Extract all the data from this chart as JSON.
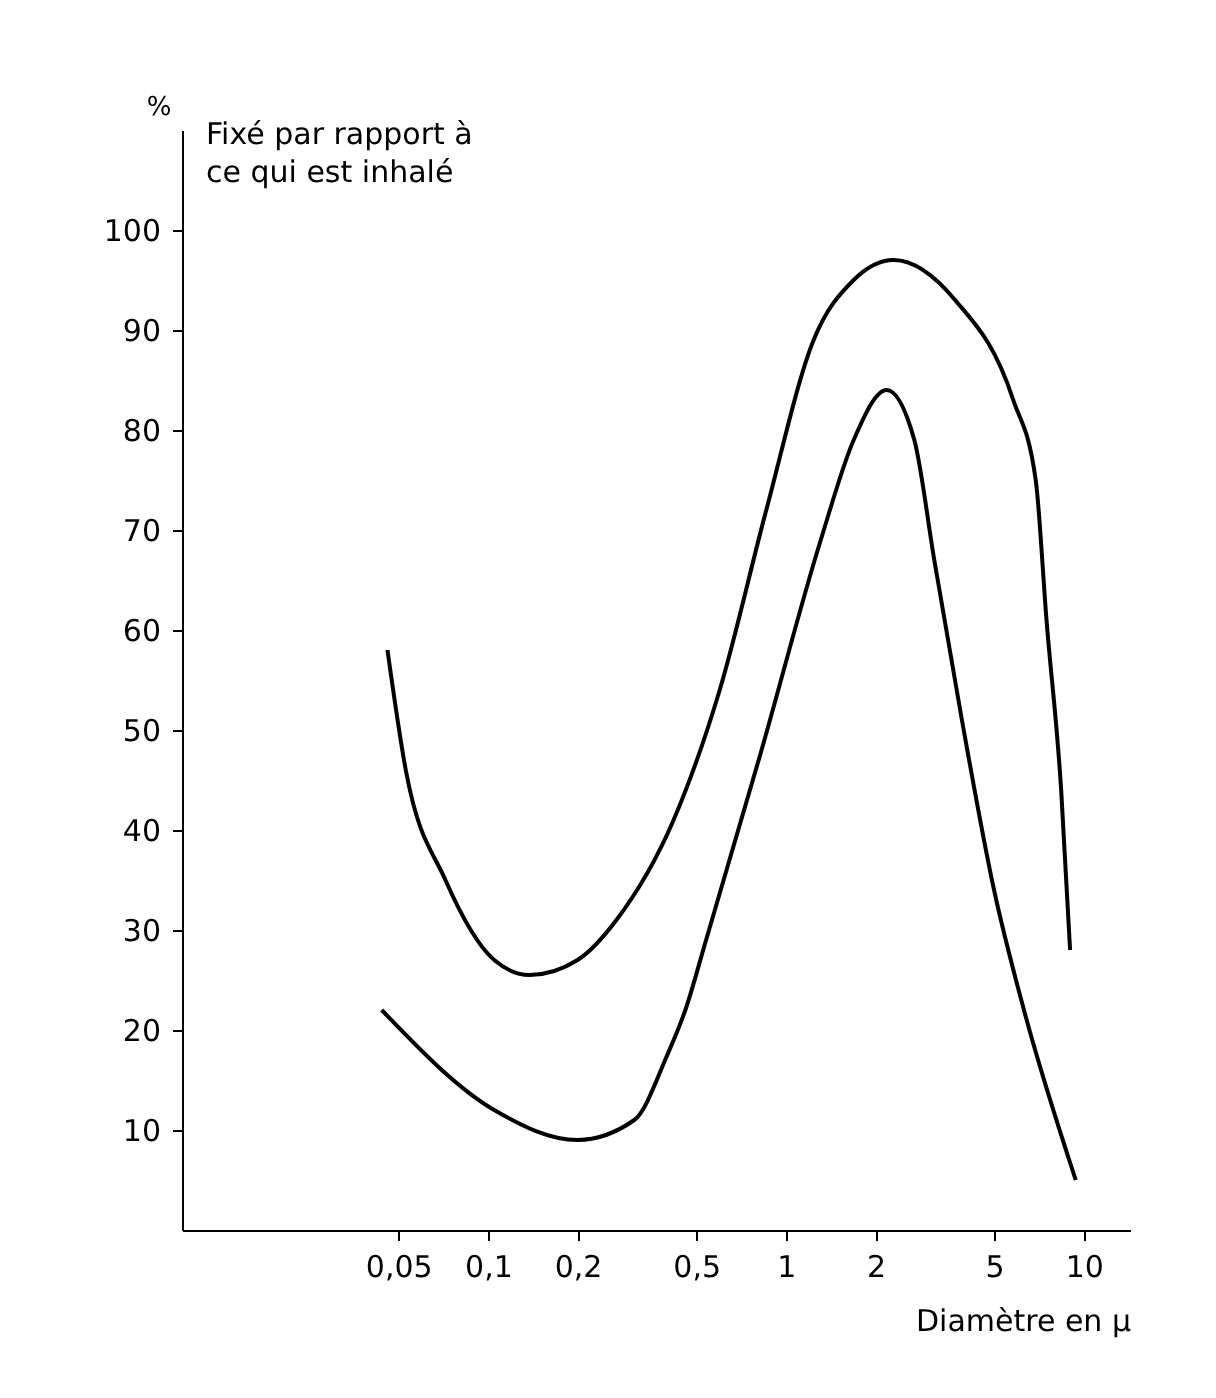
{
  "chart_data": {
    "type": "line",
    "xlabel": "Diamètre en µ",
    "ylabel": "%",
    "annotations": [
      "Fixé par rapport à\nce qui est inhalé"
    ],
    "log": "x",
    "xlim": [
      0.0094,
      14.3
    ],
    "ylim": [
      0,
      110
    ],
    "xticks": [
      {
        "value": 0.05,
        "label": "0,05"
      },
      {
        "value": 0.1,
        "label": "0,1"
      },
      {
        "value": 0.2,
        "label": "0,2"
      },
      {
        "value": 0.5,
        "label": "0,5"
      },
      1,
      2,
      5,
      10
    ],
    "yticks": [
      10,
      20,
      30,
      40,
      50,
      60,
      70,
      80,
      90,
      100
    ],
    "grid": false,
    "marker": "none",
    "line_style": "solid",
    "series": [
      {
        "color": "#000000",
        "x": [
          0.046,
          0.053,
          0.072,
          0.105,
          0.138,
          0.2,
          0.27,
          0.42,
          0.6,
          0.86,
          1.24,
          1.69,
          2.3,
          3.7,
          5.8,
          6.9,
          7.5,
          8.4,
          9.0
        ],
        "values": [
          58,
          46,
          35,
          27,
          25.5,
          27,
          31,
          41,
          54,
          72,
          89,
          95,
          97,
          93,
          83,
          75,
          61,
          44,
          28
        ]
      },
      {
        "color": "#000000",
        "x": [
          0.044,
          0.105,
          0.2,
          0.31,
          0.4,
          0.46,
          0.54,
          0.82,
          1.31,
          1.69,
          2.18,
          2.7,
          3.15,
          3.9,
          5.0,
          6.3,
          9.4
        ],
        "values": [
          22,
          12,
          9,
          11,
          17.5,
          22,
          29,
          47.5,
          69,
          79,
          84,
          79,
          67,
          51,
          34,
          22,
          5
        ]
      }
    ]
  }
}
